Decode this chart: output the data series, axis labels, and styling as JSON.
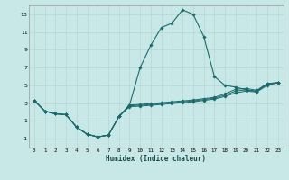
{
  "xlabel": "Humidex (Indice chaleur)",
  "background_color": "#c8e8e8",
  "grid_color": "#b8d4d4",
  "line_color": "#1a6b6b",
  "xlim": [
    -0.5,
    23.5
  ],
  "ylim": [
    -2,
    14
  ],
  "xticks": [
    0,
    1,
    2,
    3,
    4,
    5,
    6,
    7,
    8,
    9,
    10,
    11,
    12,
    13,
    14,
    15,
    16,
    17,
    18,
    19,
    20,
    21,
    22,
    23
  ],
  "yticks": [
    -1,
    1,
    3,
    5,
    7,
    9,
    11,
    13
  ],
  "curve1_x": [
    0,
    1,
    2,
    3,
    4,
    5,
    6,
    7,
    8,
    9,
    10,
    11,
    12,
    13,
    14,
    15,
    16,
    17,
    18,
    19,
    20,
    21,
    22,
    23
  ],
  "curve1_y": [
    3.3,
    2.1,
    1.8,
    1.7,
    0.3,
    -0.5,
    -0.8,
    -0.6,
    1.5,
    2.8,
    7.0,
    9.5,
    11.5,
    12.0,
    13.5,
    13.0,
    10.5,
    6.0,
    5.0,
    4.8,
    4.5,
    4.3,
    5.2,
    5.3
  ],
  "curve2_x": [
    0,
    1,
    2,
    3,
    4,
    5,
    6,
    7,
    8,
    9,
    10,
    11,
    12,
    13,
    14,
    15,
    16,
    17,
    18,
    19,
    20,
    21,
    22,
    23
  ],
  "curve2_y": [
    3.3,
    2.1,
    1.8,
    1.7,
    0.3,
    -0.5,
    -0.8,
    -0.6,
    1.5,
    2.8,
    2.85,
    2.95,
    3.05,
    3.15,
    3.25,
    3.35,
    3.5,
    3.65,
    4.05,
    4.55,
    4.65,
    4.45,
    5.2,
    5.3
  ],
  "curve3_x": [
    0,
    1,
    2,
    3,
    4,
    5,
    6,
    7,
    8,
    9,
    10,
    11,
    12,
    13,
    14,
    15,
    16,
    17,
    18,
    19,
    20,
    21,
    22,
    23
  ],
  "curve3_y": [
    3.3,
    2.1,
    1.8,
    1.7,
    0.3,
    -0.5,
    -0.8,
    -0.6,
    1.5,
    2.7,
    2.75,
    2.85,
    2.95,
    3.05,
    3.15,
    3.25,
    3.4,
    3.55,
    3.9,
    4.35,
    4.5,
    4.35,
    5.1,
    5.3
  ],
  "curve4_x": [
    0,
    1,
    2,
    3,
    4,
    5,
    6,
    7,
    8,
    9,
    10,
    11,
    12,
    13,
    14,
    15,
    16,
    17,
    18,
    19,
    20,
    21,
    22,
    23
  ],
  "curve4_y": [
    3.3,
    2.1,
    1.8,
    1.7,
    0.3,
    -0.5,
    -0.8,
    -0.6,
    1.5,
    2.6,
    2.65,
    2.75,
    2.85,
    2.95,
    3.05,
    3.15,
    3.3,
    3.45,
    3.75,
    4.15,
    4.35,
    4.25,
    5.0,
    5.3
  ]
}
